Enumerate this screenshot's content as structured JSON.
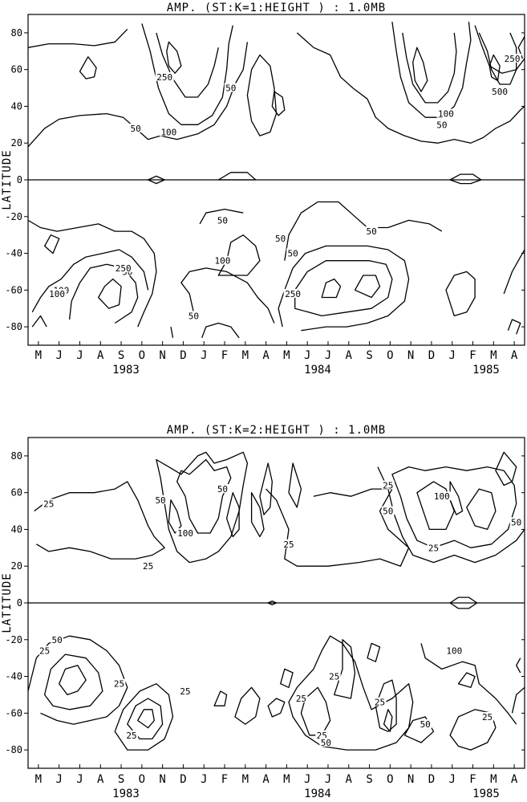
{
  "chart_data": [
    {
      "type": "contour",
      "title": "AMP.  (ST:K=1:HEIGHT   ) :   1.0MB",
      "ylabel": "LATITUDE",
      "ylim": [
        -90,
        90
      ],
      "yticks": [
        "80",
        "60",
        "40",
        "20",
        "0",
        "-20",
        "-40",
        "-60",
        "-80"
      ],
      "months": [
        "M",
        "J",
        "J",
        "A",
        "S",
        "O",
        "N",
        "D",
        "J",
        "F",
        "M",
        "A",
        "M",
        "J",
        "J",
        "A",
        "S",
        "O",
        "N",
        "D",
        "J",
        "F",
        "M",
        "A"
      ],
      "years": [
        "1983",
        "1984",
        "1985"
      ],
      "contour_levels": [
        50,
        100,
        250,
        500
      ],
      "contour_labels": [
        "250",
        "50",
        "50",
        "100",
        "500",
        "250",
        "100",
        "50",
        "50",
        "50",
        "50",
        "250",
        "100",
        "50",
        "100",
        "50",
        "50",
        "250",
        "100"
      ]
    },
    {
      "type": "contour",
      "title": "AMP.  (ST:K=2:HEIGHT   ) :   1.0MB",
      "ylabel": "LATITUDE",
      "ylim": [
        -90,
        90
      ],
      "yticks": [
        "80",
        "60",
        "40",
        "20",
        "0",
        "-20",
        "-40",
        "-60",
        "-80"
      ],
      "months": [
        "M",
        "J",
        "J",
        "A",
        "S",
        "O",
        "N",
        "D",
        "J",
        "F",
        "M",
        "A",
        "M",
        "J",
        "J",
        "A",
        "S",
        "O",
        "N",
        "D",
        "J",
        "F",
        "M",
        "A"
      ],
      "years": [
        "1983",
        "1984",
        "1985"
      ],
      "contour_levels": [
        25,
        50,
        100
      ],
      "contour_labels": [
        "25",
        "25",
        "50",
        "100",
        "50",
        "25",
        "25",
        "25",
        "50",
        "100",
        "50",
        "25",
        "50",
        "25",
        "25",
        "25",
        "25",
        "50",
        "25",
        "50",
        "100",
        "25",
        "25",
        "25"
      ]
    }
  ]
}
